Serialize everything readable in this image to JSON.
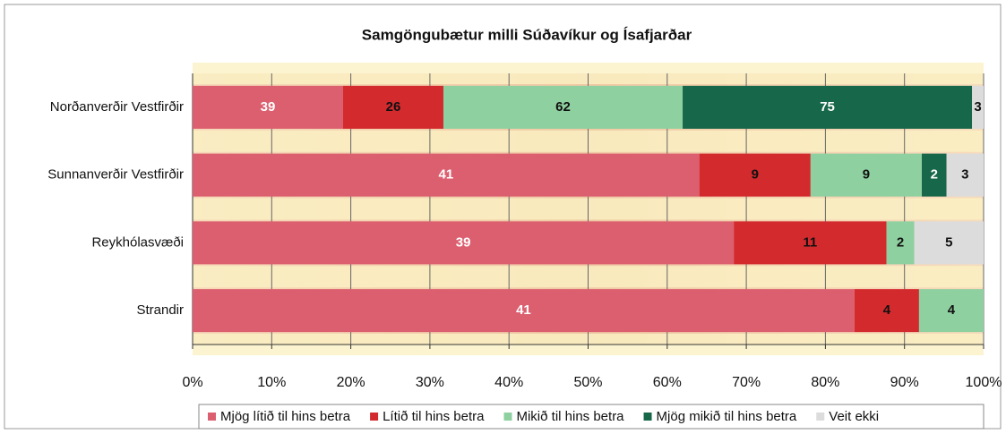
{
  "chart_data": {
    "type": "bar",
    "orientation": "horizontal",
    "stacking": "percent",
    "title": "Samgöngubætur milli Súðavíkur og Ísafjarðar",
    "categories": [
      "Norðanverðir Vestfirðir",
      "Sunnanverðir Vestfirðir",
      "Reykhólasvæði",
      "Strandir"
    ],
    "series": [
      {
        "name": "Mjög lítið til hins betra",
        "color": "#dc5f6f",
        "values": [
          39,
          41,
          39,
          41
        ]
      },
      {
        "name": "Lítið til hins betra",
        "color": "#d32a2e",
        "values": [
          26,
          9,
          11,
          4
        ]
      },
      {
        "name": "Mikið til hins betra",
        "color": "#8fd0a0",
        "values": [
          62,
          9,
          2,
          4
        ]
      },
      {
        "name": "Mjög mikið til hins betra",
        "color": "#17674a",
        "values": [
          75,
          2,
          null,
          null
        ]
      },
      {
        "name": "Veit ekki",
        "color": "#dcdcdc",
        "values": [
          3,
          3,
          5,
          null
        ]
      }
    ],
    "xlim": [
      0,
      100
    ],
    "xticks": [
      {
        "value": 0,
        "label": "0%"
      },
      {
        "value": 10,
        "label": "10%"
      },
      {
        "value": 20,
        "label": "20%"
      },
      {
        "value": 30,
        "label": "30%"
      },
      {
        "value": 40,
        "label": "40%"
      },
      {
        "value": 50,
        "label": "50%"
      },
      {
        "value": 60,
        "label": "60%"
      },
      {
        "value": 70,
        "label": "70%"
      },
      {
        "value": 80,
        "label": "80%"
      },
      {
        "value": 90,
        "label": "90%"
      },
      {
        "value": 100,
        "label": "100%"
      }
    ],
    "grid": true,
    "legend": "bottom"
  }
}
